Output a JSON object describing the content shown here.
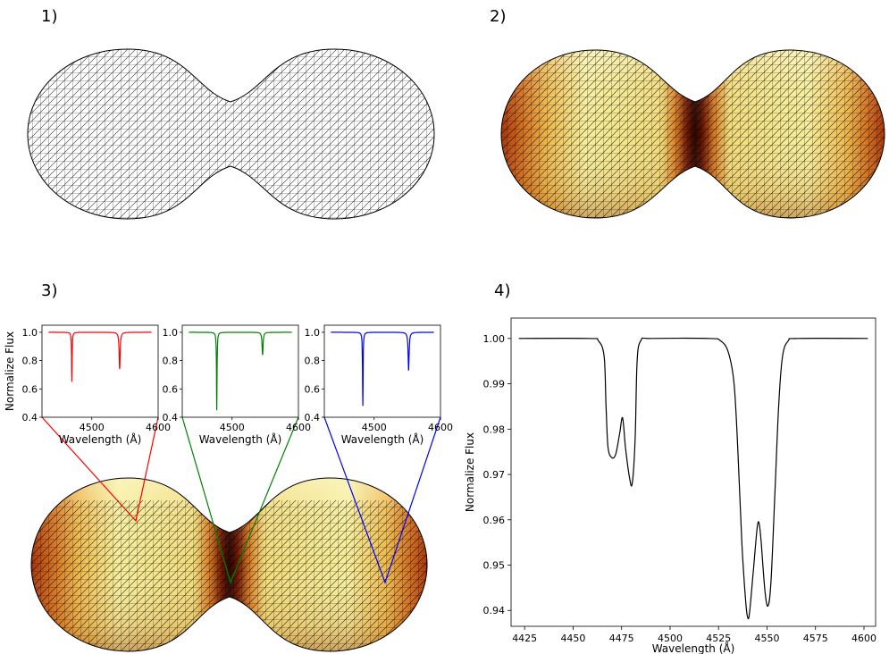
{
  "panels": {
    "p1": {
      "label": "1)"
    },
    "p2": {
      "label": "2)"
    },
    "p3": {
      "label": "3)"
    },
    "p4": {
      "label": "4)"
    }
  },
  "colors": {
    "mesh": "#000000",
    "hot_light": "#f4f08a",
    "hot_mid": "#e8a43a",
    "hot_dark": "#2a0500",
    "inset_left": "#ff0000",
    "inset_middle": "#008000",
    "inset_right": "#0000ff"
  },
  "chart_data": [
    {
      "type": "line",
      "id": "inset-left",
      "color": "#ff0000",
      "xlabel": "Wavelength (Å)",
      "ylabel": "Normalize Flux",
      "xlim": [
        4425,
        4600
      ],
      "ylim": [
        0.4,
        1.05
      ],
      "xticks": [
        "4500",
        "4600"
      ],
      "yticks": [
        "0.4",
        "0.6",
        "0.8",
        "1.0"
      ],
      "lines": [
        {
          "center": 4470,
          "depth": 0.35,
          "width": 0.5
        },
        {
          "center": 4542,
          "depth": 0.26,
          "width": 0.9
        }
      ]
    },
    {
      "type": "line",
      "id": "inset-middle",
      "color": "#008000",
      "xlabel": "Wavelength (Å)",
      "ylabel": "",
      "xlim": [
        4425,
        4600
      ],
      "ylim": [
        0.4,
        1.05
      ],
      "xticks": [
        "4500",
        "4600"
      ],
      "yticks": [
        "0.4",
        "0.6",
        "0.8",
        "1.0"
      ],
      "lines": [
        {
          "center": 4477,
          "depth": 0.55,
          "width": 0.5
        },
        {
          "center": 4546,
          "depth": 0.16,
          "width": 0.9
        }
      ]
    },
    {
      "type": "line",
      "id": "inset-right",
      "color": "#0000ff",
      "xlabel": "Wavelength (Å)",
      "ylabel": "",
      "xlim": [
        4425,
        4600
      ],
      "ylim": [
        0.4,
        1.05
      ],
      "xticks": [
        "4500",
        "4600"
      ],
      "yticks": [
        "0.4",
        "0.6",
        "0.8",
        "1.0"
      ],
      "lines": [
        {
          "center": 4483,
          "depth": 0.52,
          "width": 0.5
        },
        {
          "center": 4552,
          "depth": 0.27,
          "width": 0.9
        }
      ]
    },
    {
      "type": "line",
      "id": "main",
      "color": "#000000",
      "xlabel": "Wavelength (Å)",
      "ylabel": "Normalize Flux",
      "xlim": [
        4418,
        4606
      ],
      "ylim": [
        0.9365,
        1.0045
      ],
      "x_start": 4422,
      "x_end": 4602,
      "xticks": [
        4425,
        4450,
        4475,
        4500,
        4525,
        4550,
        4575,
        4600
      ],
      "yticks": [
        0.94,
        0.95,
        0.96,
        0.97,
        0.98,
        0.99,
        1.0
      ],
      "ytick_labels": [
        "0.94",
        "0.95",
        "0.96",
        "0.97",
        "0.98",
        "0.99",
        "1.00"
      ],
      "profile_points": [
        [
          4422,
          1.0
        ],
        [
          4458,
          1.0
        ],
        [
          4463,
          0.9995
        ],
        [
          4466,
          0.996
        ],
        [
          4467,
          0.985
        ],
        [
          4468,
          0.976
        ],
        [
          4470,
          0.9737
        ],
        [
          4472,
          0.9745
        ],
        [
          4474,
          0.979
        ],
        [
          4475.5,
          0.9825
        ],
        [
          4477,
          0.976
        ],
        [
          4479,
          0.9695
        ],
        [
          4480.5,
          0.968
        ],
        [
          4482,
          0.978
        ],
        [
          4483,
          0.995
        ],
        [
          4485,
          0.9996
        ],
        [
          4490,
          1.0
        ],
        [
          4520,
          1.0
        ],
        [
          4526,
          0.9995
        ],
        [
          4530,
          0.997
        ],
        [
          4533,
          0.99
        ],
        [
          4535,
          0.975
        ],
        [
          4537,
          0.955
        ],
        [
          4539,
          0.942
        ],
        [
          4540,
          0.9385
        ],
        [
          4541,
          0.9395
        ],
        [
          4543,
          0.949
        ],
        [
          4545,
          0.9585
        ],
        [
          4546,
          0.959
        ],
        [
          4547,
          0.955
        ],
        [
          4549,
          0.944
        ],
        [
          4550.5,
          0.941
        ],
        [
          4552,
          0.946
        ],
        [
          4554,
          0.965
        ],
        [
          4556,
          0.985
        ],
        [
          4558,
          0.996
        ],
        [
          4561,
          0.9995
        ],
        [
          4566,
          1.0
        ],
        [
          4602,
          1.0
        ]
      ]
    }
  ]
}
